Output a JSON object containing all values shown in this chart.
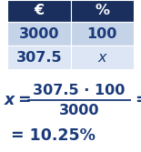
{
  "table_header_bg": "#1a2f5e",
  "table_row1_bg": "#c5d3e8",
  "table_row2_bg": "#dce6f4",
  "header_text_color": "#ffffff",
  "cell_text_color": "#1a3a7a",
  "header_labels": [
    "€",
    "%"
  ],
  "row1_values": [
    "3000",
    "100"
  ],
  "row2_values": [
    "307.5",
    "x"
  ],
  "formula_numerator": "307.5 · 100",
  "formula_denom": "3000",
  "formula_result": "= 10.25%",
  "text_color": "#1a3a7a",
  "font_size_table": 11.5,
  "font_size_formula": 11.5,
  "bg_color": "#ffffff"
}
